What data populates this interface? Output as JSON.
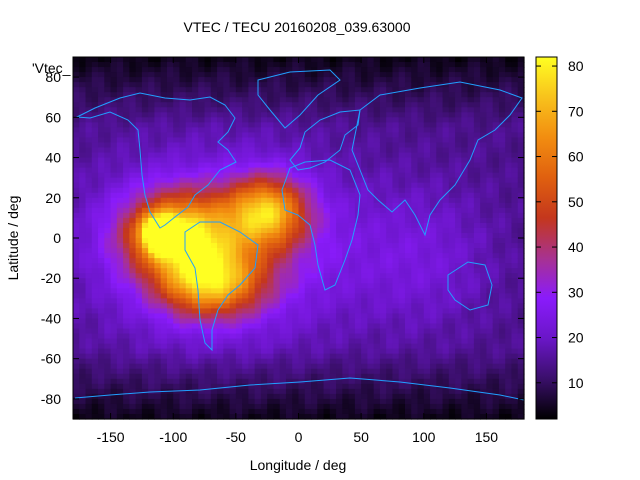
{
  "chart_data": {
    "type": "heatmap",
    "title": "VTEC / TECU 20160208_039.63000",
    "xlabel": "Longitude / deg",
    "ylabel": "Latitude / deg",
    "plot_key": "'Vtec_",
    "xlim": [
      -180,
      180
    ],
    "ylim": [
      -90,
      90
    ],
    "x_ticks": [
      "-150",
      "-100",
      "-50",
      "0",
      "50",
      "100",
      "150"
    ],
    "x_tick_values": [
      -150,
      -100,
      -50,
      0,
      50,
      100,
      150
    ],
    "y_ticks": [
      "80",
      "60",
      "40",
      "20",
      "0",
      "-20",
      "-40",
      "-60",
      "-80"
    ],
    "y_tick_values": [
      80,
      60,
      40,
      20,
      0,
      -20,
      -40,
      -60,
      -80
    ],
    "colorbar": {
      "range": [
        2,
        82
      ],
      "ticks": [
        "80",
        "70",
        "60",
        "50",
        "40",
        "30",
        "20",
        "10"
      ],
      "tick_values": [
        80,
        70,
        60,
        50,
        40,
        30,
        20,
        10
      ],
      "palette": [
        "#000000",
        "#3a0f6a",
        "#6a16c7",
        "#8a1bfb",
        "#a83290",
        "#c4371d",
        "#e0600f",
        "#f28d10",
        "#f8c21c",
        "#ffff22"
      ]
    },
    "background_tec": 14,
    "polar_tec": 4,
    "tec_blobs": [
      {
        "lon": -95,
        "lat": 2,
        "peak": 48,
        "lon_sigma": 30,
        "lat_sigma": 14
      },
      {
        "lon": -25,
        "lat": 13,
        "peak": 46,
        "lon_sigma": 22,
        "lat_sigma": 12
      },
      {
        "lon": -70,
        "lat": -22,
        "peak": 44,
        "lon_sigma": 28,
        "lat_sigma": 12
      },
      {
        "lon": -110,
        "lat": 2,
        "peak": 52,
        "lon_sigma": 10,
        "lat_sigma": 6
      },
      {
        "lon": -60,
        "lat": -5,
        "peak": 22,
        "lon_sigma": 70,
        "lat_sigma": 30
      },
      {
        "lon": 100,
        "lat": -10,
        "peak": 8,
        "lon_sigma": 40,
        "lat_sigma": 25
      }
    ]
  }
}
